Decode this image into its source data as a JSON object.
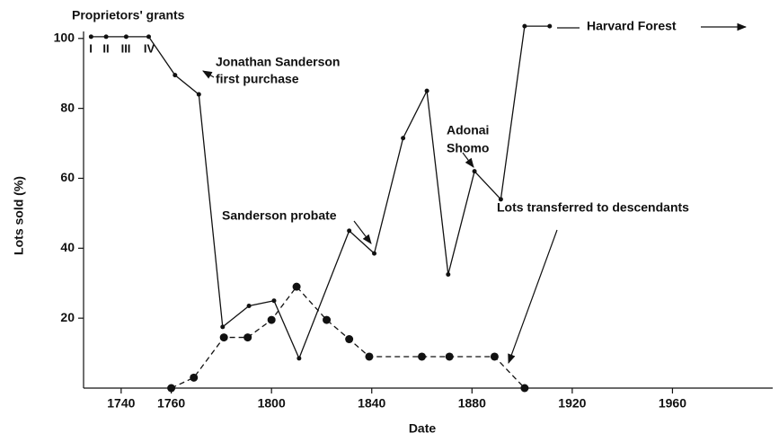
{
  "chart_data": {
    "type": "line",
    "xlabel": "Date",
    "ylabel": "Lots sold (%)",
    "xlim": [
      1725,
      2000
    ],
    "xticks": [
      1740,
      1760,
      1800,
      1840,
      1880,
      1920,
      1960
    ],
    "ylim": [
      0,
      102
    ],
    "yticks": [
      20,
      40,
      60,
      80,
      100
    ],
    "series": [
      {
        "style": "solid",
        "color": "#111111",
        "x": [
          1728,
          1734,
          1742,
          1751,
          1761.5,
          1771,
          1780.5,
          1791,
          1801,
          1811,
          1831,
          1841,
          1852.5,
          1862,
          1870.5,
          1881,
          1891.5,
          1901,
          1911
        ],
        "values": [
          100.5,
          100.5,
          100.5,
          100.5,
          89.5,
          84,
          17.5,
          23.5,
          25,
          8.5,
          45,
          38.5,
          71.5,
          85,
          32.5,
          62,
          54,
          103.5,
          103.5
        ]
      },
      {
        "style": "dashed",
        "color": "#111111",
        "x": [
          1760,
          1769,
          1781,
          1790.5,
          1800,
          1810,
          1822,
          1831,
          1839,
          1860,
          1871,
          1889,
          1901
        ],
        "values": [
          0,
          3,
          14.5,
          14.5,
          19.5,
          29,
          19.5,
          14,
          9,
          9,
          9,
          9,
          0
        ]
      }
    ],
    "annotations": [
      "Proprietors' grants",
      "I",
      "II",
      "III",
      "IV",
      "Jonathan Sanderson",
      "first purchase",
      "Adonai",
      "Shomo",
      "Sanderson probate",
      "Lots transferred to descendants",
      "Harvard Forest"
    ]
  }
}
